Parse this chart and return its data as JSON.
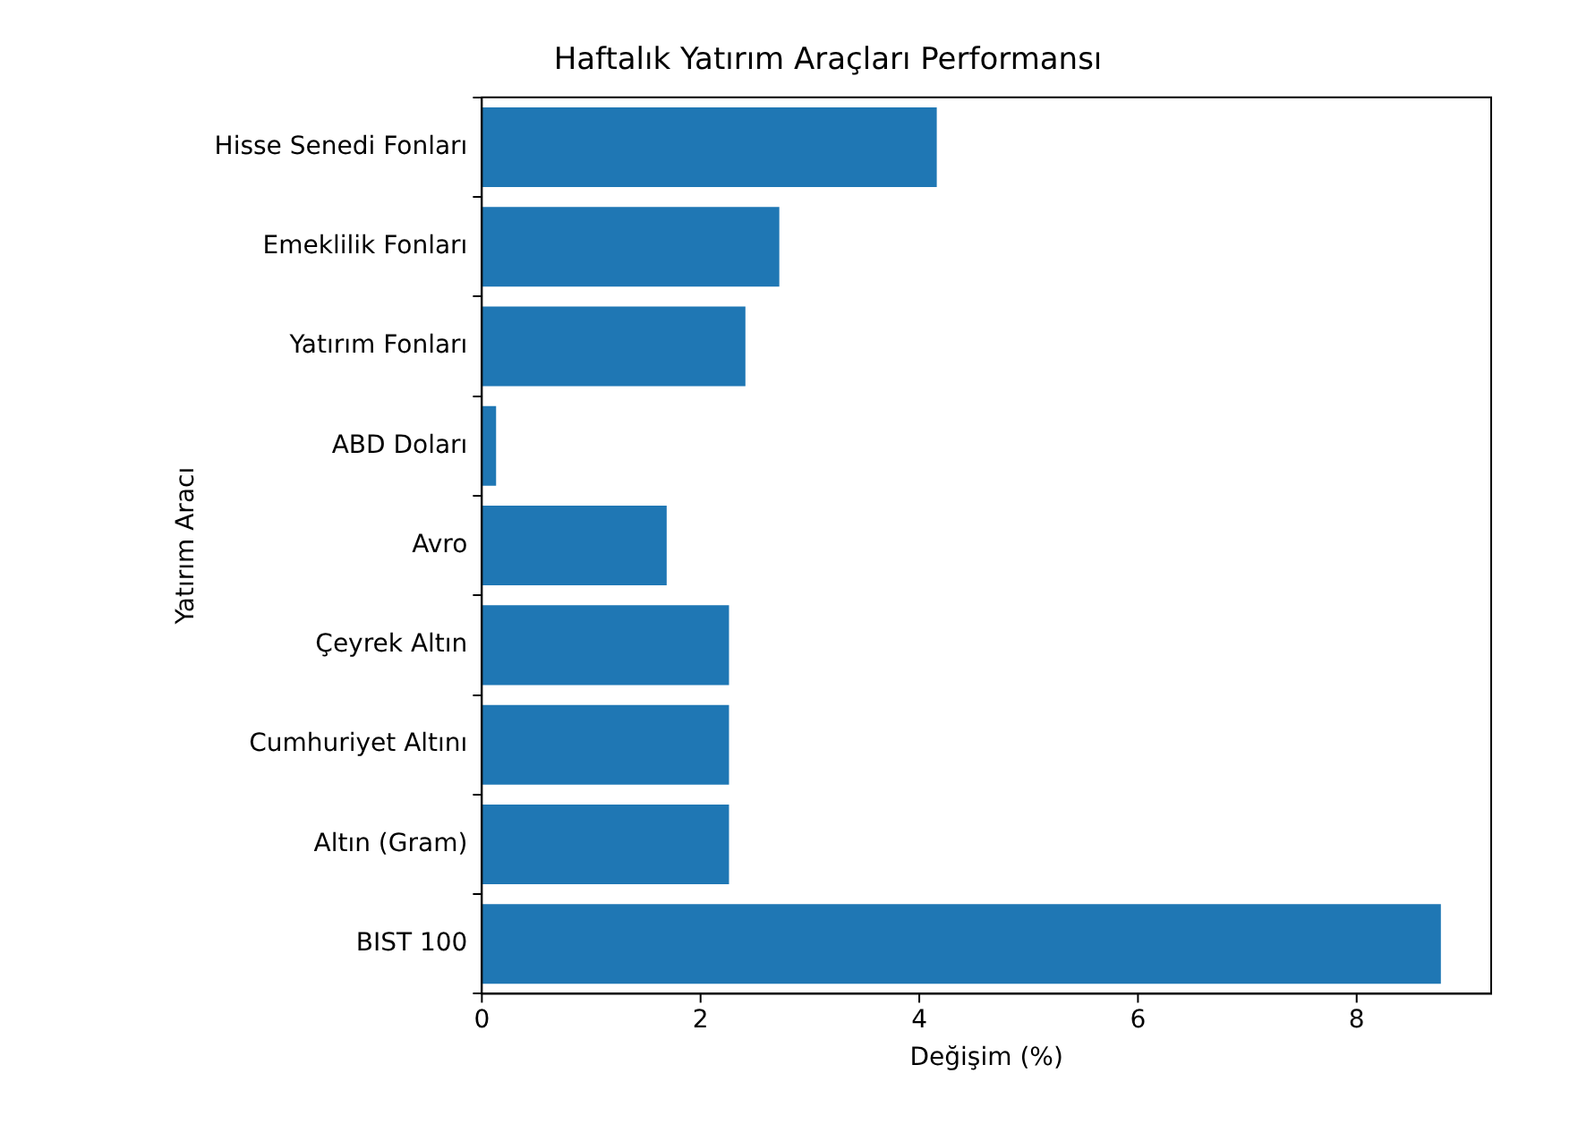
{
  "chart_data": {
    "type": "bar",
    "orientation": "horizontal",
    "title": "Haftalık Yatırım Araçları Performansı",
    "xlabel": "Değişim (%)",
    "ylabel": "Yatırım Aracı",
    "categories": [
      "Hisse Senedi Fonları",
      "Emeklilik Fonları",
      "Yatırım Fonları",
      "ABD Doları",
      "Avro",
      "Çeyrek Altın",
      "Cumhuriyet Altını",
      "Altın (Gram)",
      "BIST 100"
    ],
    "values": [
      4.16,
      2.72,
      2.41,
      0.13,
      1.69,
      2.26,
      2.26,
      2.26,
      8.77
    ],
    "color": "#1f77b4",
    "xlim": [
      0,
      9.23
    ],
    "xticks": [
      0,
      2,
      4,
      6,
      8
    ],
    "grid": false,
    "legend": false
  }
}
